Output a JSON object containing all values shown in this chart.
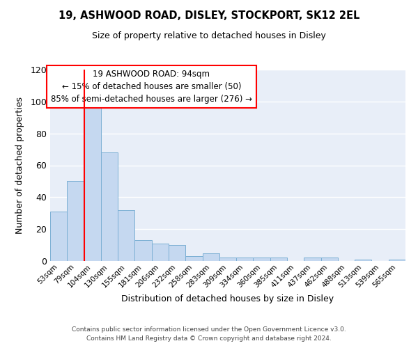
{
  "title": "19, ASHWOOD ROAD, DISLEY, STOCKPORT, SK12 2EL",
  "subtitle": "Size of property relative to detached houses in Disley",
  "xlabel": "Distribution of detached houses by size in Disley",
  "ylabel": "Number of detached properties",
  "bar_labels": [
    "53sqm",
    "79sqm",
    "104sqm",
    "130sqm",
    "155sqm",
    "181sqm",
    "206sqm",
    "232sqm",
    "258sqm",
    "283sqm",
    "309sqm",
    "334sqm",
    "360sqm",
    "385sqm",
    "411sqm",
    "437sqm",
    "462sqm",
    "488sqm",
    "513sqm",
    "539sqm",
    "565sqm"
  ],
  "bar_values": [
    31,
    50,
    101,
    68,
    32,
    13,
    11,
    10,
    3,
    5,
    2,
    2,
    2,
    2,
    0,
    2,
    2,
    0,
    1,
    0,
    1
  ],
  "bar_color": "#c5d8f0",
  "bar_edge_color": "#7bafd4",
  "background_color": "#e8eef8",
  "ylim": [
    0,
    120
  ],
  "yticks": [
    0,
    20,
    40,
    60,
    80,
    100,
    120
  ],
  "red_line_x": 1.5,
  "annotation_title": "19 ASHWOOD ROAD: 94sqm",
  "annotation_line1": "← 15% of detached houses are smaller (50)",
  "annotation_line2": "85% of semi-detached houses are larger (276) →",
  "footer1": "Contains HM Land Registry data © Crown copyright and database right 2024.",
  "footer2": "Contains public sector information licensed under the Open Government Licence v3.0."
}
